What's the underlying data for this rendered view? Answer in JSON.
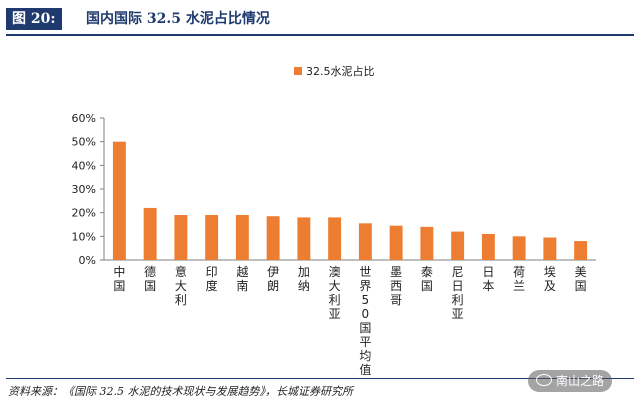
{
  "header": {
    "figure_label": "图 20:",
    "title": "国内国际 32.5 水泥占比情况"
  },
  "footer": {
    "source": "资料来源：《国际 32.5 水泥的技术现状与发展趋势》，长城证券研究所"
  },
  "watermark": {
    "text": "南山之路"
  },
  "colors": {
    "bar": "#ED7D31",
    "header": "#1F3A6E"
  },
  "chart_data": {
    "type": "bar",
    "legend_position": "top-center",
    "ylim": [
      0,
      0.6
    ],
    "yticks": [
      0,
      0.1,
      0.2,
      0.3,
      0.4,
      0.5,
      0.6
    ],
    "ytick_labels": [
      "0%",
      "10%",
      "20%",
      "30%",
      "40%",
      "50%",
      "60%"
    ],
    "categories": [
      "中国",
      "德国",
      "意大利",
      "印度",
      "越南",
      "伊朗",
      "加纳",
      "澳大利亚",
      "世界50国平均值",
      "墨西哥",
      "泰国",
      "尼日利亚",
      "日本",
      "荷兰",
      "埃及",
      "美国"
    ],
    "series": [
      {
        "name": "32.5水泥占比",
        "values": [
          0.5,
          0.22,
          0.19,
          0.19,
          0.19,
          0.185,
          0.18,
          0.18,
          0.155,
          0.145,
          0.14,
          0.12,
          0.11,
          0.1,
          0.095,
          0.08
        ]
      }
    ]
  }
}
